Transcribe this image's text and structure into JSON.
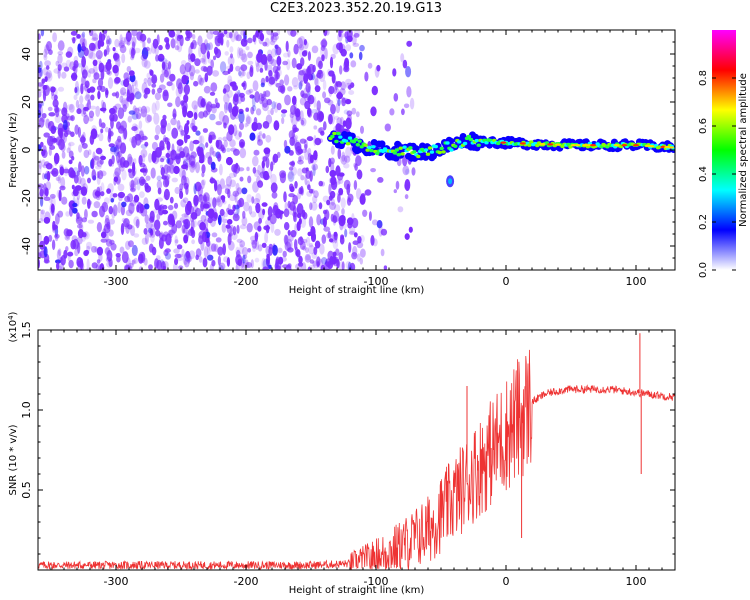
{
  "title": "C2E3.2023.352.20.19.G13",
  "chart_data": [
    {
      "type": "heatmap",
      "xlabel": "Height of straight line (km)",
      "ylabel": "Frequency (Hz)",
      "xlim": [
        -360,
        130
      ],
      "ylim": [
        -50,
        50
      ],
      "xticks": [
        "-300",
        "-200",
        "-100",
        "0",
        "100"
      ],
      "yticks": [
        "40",
        "20",
        "0",
        "-20",
        "-40"
      ],
      "colorbar": {
        "label": "Normalized spectral amplitude",
        "range": [
          0,
          1
        ],
        "ticks": [
          "0.0",
          "0.2",
          "0.4",
          "0.6",
          "0.8"
        ],
        "colors": [
          "#ffffff",
          "#0000ff",
          "#00ffff",
          "#00ff00",
          "#ffff00",
          "#ff0000",
          "#ff00ff"
        ]
      },
      "features": {
        "noise_region_x": [
          -360,
          -110
        ],
        "noise_color": "#7b2bff",
        "signal_line": {
          "x": [
            -135,
            -100,
            -60,
            -30,
            0,
            50,
            100,
            130
          ],
          "y": [
            6,
            0,
            -1,
            4,
            3,
            2,
            2,
            1
          ]
        },
        "blob": {
          "x": -43,
          "y": -13
        },
        "grid": false
      }
    },
    {
      "type": "line",
      "xlabel": "Height of straight line (km)",
      "ylabel": "SNR (10 * v/v)",
      "scale_label": "(x10",
      "scale_exp": "4",
      "xlim": [
        -360,
        130
      ],
      "ylim": [
        0,
        15000
      ],
      "xticks": [
        "-300",
        "-200",
        "-100",
        "0",
        "100"
      ],
      "yticks": [
        "0.5",
        "1.0",
        "1.5"
      ],
      "color": "#ee3333",
      "series": [
        {
          "x": [
            -360,
            -300,
            -250,
            -200,
            -150,
            -120,
            -100,
            -80,
            -60,
            -50,
            -40,
            -30,
            -20,
            -10,
            0,
            10,
            20,
            30,
            40,
            50,
            60,
            70,
            80,
            90,
            100,
            110,
            120,
            130
          ],
          "values": [
            300,
            300,
            300,
            300,
            300,
            400,
            800,
            1500,
            2500,
            3500,
            4500,
            5500,
            6500,
            7500,
            8500,
            9500,
            10500,
            11000,
            11200,
            11300,
            11300,
            11300,
            11300,
            11200,
            11100,
            11000,
            10900,
            10800
          ]
        }
      ],
      "grid": false
    }
  ]
}
